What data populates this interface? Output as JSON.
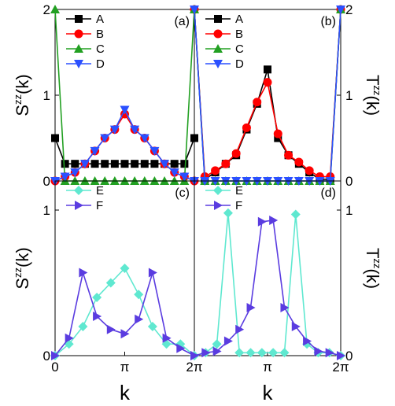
{
  "chart_data": [
    {
      "panel": "(a)",
      "type": "line",
      "ylabel": "S^zz(k)",
      "ylabel_base": "S",
      "ylabel_sup": "zz",
      "ylabel_arg": "(k)",
      "ylabel_side": "left",
      "ylim": [
        0,
        2
      ],
      "yticks": [
        0,
        1,
        2
      ],
      "ytick_labels": [
        "0",
        "1",
        "2"
      ],
      "xlim": [
        0,
        6.2832
      ],
      "xticks": [],
      "legend": "top-left",
      "x": [
        0,
        0.4488,
        0.8976,
        1.3464,
        1.7952,
        2.244,
        2.6928,
        3.1416,
        3.5904,
        4.0392,
        4.488,
        4.9368,
        5.3856,
        5.8344,
        6.2832
      ],
      "series": [
        {
          "name": "A",
          "marker": "square",
          "color": "#000000",
          "values": [
            0.5,
            0.2,
            0.2,
            0.2,
            0.2,
            0.2,
            0.2,
            0.2,
            0.2,
            0.2,
            0.2,
            0.2,
            0.2,
            0.2,
            0.5
          ]
        },
        {
          "name": "B",
          "marker": "circle",
          "color": "#ff0000",
          "values": [
            0,
            0.05,
            0.1,
            0.2,
            0.35,
            0.5,
            0.6,
            0.78,
            0.6,
            0.5,
            0.35,
            0.2,
            0.1,
            0.05,
            0
          ]
        },
        {
          "name": "C",
          "marker": "triangle-up",
          "color": "#22a022",
          "values": [
            2,
            0,
            0,
            0,
            0,
            0,
            0,
            0,
            0,
            0,
            0,
            0,
            0,
            0,
            2
          ]
        },
        {
          "name": "D",
          "marker": "triangle-down",
          "color": "#2b50ff",
          "values": [
            0,
            0.05,
            0.1,
            0.2,
            0.35,
            0.5,
            0.6,
            0.83,
            0.6,
            0.5,
            0.35,
            0.2,
            0.1,
            0.05,
            0
          ]
        }
      ]
    },
    {
      "panel": "(b)",
      "type": "line",
      "ylabel": "T^zz(k)",
      "ylabel_base": "T",
      "ylabel_sup": "zz",
      "ylabel_arg": "(k)",
      "ylabel_side": "right",
      "ylim": [
        0,
        2
      ],
      "yticks": [
        0,
        1,
        2
      ],
      "ytick_labels": [
        "0",
        "1",
        "2"
      ],
      "xlim": [
        0,
        6.2832
      ],
      "xticks": [],
      "legend": "top-left",
      "x": [
        0,
        0.4488,
        0.8976,
        1.3464,
        1.7952,
        2.244,
        2.6928,
        3.1416,
        3.5904,
        4.0392,
        4.488,
        4.9368,
        5.3856,
        5.8344,
        6.2832
      ],
      "series": [
        {
          "name": "A",
          "marker": "square",
          "color": "#000000",
          "values": [
            2,
            0.02,
            0.1,
            0.2,
            0.3,
            0.6,
            0.9,
            1.3,
            0.5,
            0.3,
            0.2,
            0.1,
            0.02,
            0.02,
            2
          ]
        },
        {
          "name": "B",
          "marker": "circle",
          "color": "#ff0000",
          "values": [
            2,
            0.05,
            0.12,
            0.2,
            0.32,
            0.62,
            0.92,
            1.15,
            0.55,
            0.3,
            0.22,
            0.12,
            0.05,
            0.05,
            2
          ]
        },
        {
          "name": "C",
          "marker": "triangle-up",
          "color": "#22a022",
          "values": [
            2,
            0,
            0,
            0,
            0,
            0,
            0,
            0,
            0,
            0,
            0,
            0,
            0,
            0,
            2
          ]
        },
        {
          "name": "D",
          "marker": "triangle-down",
          "color": "#2b50ff",
          "values": [
            2,
            0,
            0,
            0,
            0,
            0,
            0,
            0,
            0,
            0,
            0,
            0,
            0,
            0,
            2
          ]
        }
      ]
    },
    {
      "panel": "(c)",
      "type": "line",
      "ylabel": "S^zz(k)",
      "ylabel_base": "S",
      "ylabel_sup": "zz",
      "ylabel_arg": "(k)",
      "ylabel_side": "left",
      "ylim": [
        0,
        1.2
      ],
      "yticks": [
        0,
        1
      ],
      "ytick_labels": [
        "0",
        "1"
      ],
      "xlim": [
        0,
        6.2832
      ],
      "xticks": [
        0,
        3.1416,
        6.2832
      ],
      "xtick_labels": [
        "0",
        "π",
        "2π"
      ],
      "xlabel": "k",
      "legend": "top-left",
      "x": [
        0,
        0.6283,
        1.2566,
        1.885,
        2.5133,
        3.1416,
        3.7699,
        4.3982,
        5.0265,
        5.6549,
        6.2832
      ],
      "series": [
        {
          "name": "E",
          "marker": "diamond",
          "color": "#5fe8d0",
          "values": [
            0,
            0.08,
            0.2,
            0.4,
            0.5,
            0.6,
            0.42,
            0.2,
            0.08,
            0.08,
            0
          ]
        },
        {
          "name": "F",
          "marker": "triangle-right",
          "color": "#5a3ce0",
          "values": [
            0,
            0.12,
            0.57,
            0.27,
            0.18,
            0.15,
            0.25,
            0.57,
            0.12,
            0.05,
            0
          ]
        }
      ]
    },
    {
      "panel": "(d)",
      "type": "line",
      "ylabel": "T^zz(k)",
      "ylabel_base": "T",
      "ylabel_sup": "zz",
      "ylabel_arg": "(k)",
      "ylabel_side": "right",
      "ylim": [
        0,
        1.2
      ],
      "yticks": [
        0,
        1
      ],
      "ytick_labels": [
        "0",
        "1"
      ],
      "xlim": [
        0,
        6.2832
      ],
      "xticks": [
        0,
        3.1416,
        6.2832
      ],
      "xtick_labels": [
        "",
        "π",
        "2π"
      ],
      "xlabel": "k",
      "legend": "top-left",
      "x": [
        0,
        0.4833,
        0.9666,
        1.45,
        1.9333,
        2.4166,
        2.9,
        3.3833,
        3.8666,
        4.3499,
        4.8333,
        5.3166,
        5.7999,
        6.2832
      ],
      "series": [
        {
          "name": "E",
          "marker": "diamond",
          "color": "#5fe8d0",
          "values": [
            0,
            0.02,
            0.08,
            0.98,
            0.02,
            0.02,
            0.02,
            0.02,
            0.02,
            0.97,
            0.08,
            0.02,
            0.02,
            0
          ]
        },
        {
          "name": "F",
          "marker": "triangle-right",
          "color": "#5a3ce0",
          "values": [
            0,
            0.02,
            0.03,
            0.1,
            0.18,
            0.33,
            0.92,
            0.93,
            0.33,
            0.2,
            0.1,
            0.03,
            0.02,
            0
          ]
        }
      ]
    }
  ]
}
